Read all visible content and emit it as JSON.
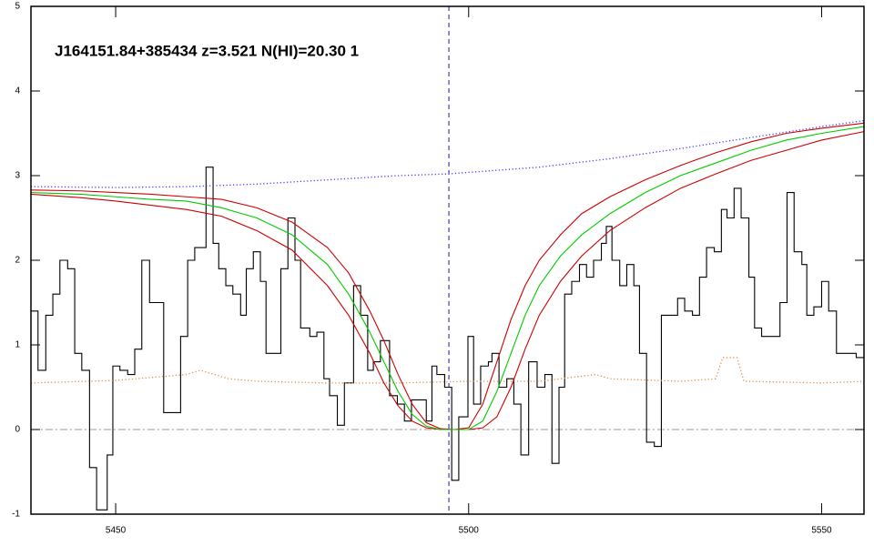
{
  "chart_data": {
    "type": "line",
    "title": "J164151.84+385434 z=3.521 N(HI)=20.30 1",
    "xlim": [
      5438,
      5556
    ],
    "ylim": [
      -1,
      5
    ],
    "xticks": [
      5450,
      5500,
      5550
    ],
    "yticks": [
      -1,
      0,
      1,
      2,
      3,
      4,
      5
    ],
    "vlines": [
      {
        "value": 5497.2,
        "color": "#1a1a9a",
        "dash": "dashed"
      }
    ],
    "hlines": [
      {
        "value": 0,
        "color": "#999999",
        "dash": "dashdot"
      }
    ],
    "series": [
      {
        "kind": "step",
        "color": "#000000",
        "dash": "solid",
        "x": [
          5438.0,
          5439.0,
          5440.1,
          5441.1,
          5442.1,
          5443.2,
          5444.2,
          5445.2,
          5446.3,
          5447.3,
          5448.3,
          5448.8,
          5449.6,
          5450.6,
          5451.7,
          5452.7,
          5453.7,
          5454.8,
          5455.8,
          5456.8,
          5458.1,
          5459.2,
          5460.2,
          5461.2,
          5462.8,
          5463.8,
          5464.6,
          5465.6,
          5466.6,
          5467.7,
          5468.5,
          5469.5,
          5470.5,
          5471.3,
          5472.3,
          5473.4,
          5474.4,
          5475.4,
          5476.2,
          5477.5,
          5478.5,
          5479.5,
          5480.3,
          5481.4,
          5482.4,
          5483.7,
          5484.7,
          5485.7,
          5486.5,
          5487.5,
          5488.8,
          5489.9,
          5490.9,
          5491.9,
          5493.0,
          5494.0,
          5494.8,
          5495.5,
          5496.6,
          5497.6,
          5498.6,
          5499.9,
          5500.7,
          5501.7,
          5502.8,
          5503.3,
          5504.3,
          5505.4,
          5506.4,
          5507.4,
          5508.5,
          5509.7,
          5510.8,
          5511.8,
          5512.8,
          5513.6,
          5514.6,
          5515.7,
          5516.7,
          5517.7,
          5518.8,
          5519.5,
          5520.3,
          5521.4,
          5522.4,
          5523.4,
          5524.2,
          5525.2,
          5526.3,
          5527.3,
          5528.3,
          5529.6,
          5530.6,
          5531.7,
          5532.7,
          5533.7,
          5534.8,
          5535.8,
          5536.6,
          5537.6,
          5538.6,
          5539.7,
          5540.5,
          5541.5,
          5542.8,
          5544.1,
          5545.1,
          5546.1,
          5547.2,
          5547.9,
          5548.9,
          5550.0,
          5551.0,
          5552.1,
          5553.6,
          5554.9
        ],
        "values": [
          1.4,
          0.7,
          1.35,
          1.6,
          2.0,
          1.9,
          0.9,
          0.7,
          -0.45,
          -0.95,
          -0.95,
          -0.3,
          0.75,
          0.7,
          0.65,
          0.95,
          2.0,
          1.5,
          1.5,
          0.2,
          0.2,
          1.1,
          2.0,
          2.15,
          3.1,
          2.2,
          1.9,
          1.7,
          1.6,
          1.35,
          1.9,
          2.1,
          1.75,
          0.9,
          0.9,
          1.9,
          2.5,
          2.0,
          1.2,
          1.1,
          1.15,
          0.6,
          0.4,
          0.05,
          0.55,
          1.7,
          1.35,
          0.7,
          0.8,
          1.05,
          0.4,
          0.3,
          0.1,
          0.35,
          0.35,
          0.1,
          0.75,
          0.65,
          0.5,
          -0.6,
          0.15,
          1.1,
          0.3,
          0.75,
          0.8,
          0.9,
          0.5,
          0.6,
          0.3,
          -0.3,
          0.8,
          0.5,
          0.65,
          -0.4,
          0.5,
          1.6,
          1.75,
          1.95,
          1.8,
          2.0,
          2.2,
          2.4,
          2.0,
          1.7,
          1.95,
          1.7,
          0.9,
          -0.15,
          -0.2,
          1.35,
          1.35,
          1.55,
          1.4,
          1.35,
          1.8,
          2.15,
          2.1,
          2.6,
          2.5,
          2.85,
          2.5,
          1.8,
          1.2,
          1.1,
          1.1,
          1.5,
          2.8,
          2.1,
          1.95,
          1.35,
          1.45,
          1.75,
          1.4,
          0.9,
          0.9,
          0.85
        ]
      },
      {
        "kind": "line",
        "color": "#e08a40",
        "dash": "dotted",
        "x": [
          5438,
          5450,
          5460,
          5462,
          5466,
          5470,
          5480,
          5490,
          5500,
          5510,
          5518,
          5520,
          5530,
          5535,
          5536,
          5538,
          5539,
          5550,
          5556
        ],
        "values": [
          0.55,
          0.58,
          0.65,
          0.7,
          0.6,
          0.57,
          0.55,
          0.55,
          0.57,
          0.57,
          0.65,
          0.6,
          0.57,
          0.6,
          0.85,
          0.85,
          0.57,
          0.55,
          0.57
        ]
      },
      {
        "kind": "line",
        "color": "#3a3aff",
        "dash": "dotted",
        "x": [
          5438,
          5450,
          5460,
          5470,
          5480,
          5490,
          5497,
          5510,
          5520,
          5530,
          5540,
          5550,
          5556
        ],
        "values": [
          2.87,
          2.86,
          2.87,
          2.9,
          2.95,
          3.0,
          3.02,
          3.1,
          3.2,
          3.32,
          3.45,
          3.58,
          3.65
        ]
      },
      {
        "kind": "line",
        "color": "#cc0000",
        "dash": "solid",
        "x": [
          5438,
          5445,
          5450,
          5455,
          5460,
          5465,
          5470,
          5475,
          5480,
          5483,
          5486,
          5488,
          5490,
          5492,
          5494,
          5496,
          5498,
          5500,
          5502,
          5504,
          5506,
          5508,
          5510,
          5513,
          5516,
          5520,
          5525,
          5530,
          5535,
          5540,
          5545,
          5550,
          5556
        ],
        "values": [
          2.83,
          2.82,
          2.8,
          2.78,
          2.75,
          2.72,
          2.62,
          2.45,
          2.15,
          1.85,
          1.4,
          1.05,
          0.65,
          0.3,
          0.08,
          0.01,
          0,
          0.02,
          0.3,
          0.8,
          1.3,
          1.7,
          2.0,
          2.3,
          2.55,
          2.75,
          2.95,
          3.12,
          3.27,
          3.4,
          3.5,
          3.56,
          3.62
        ]
      },
      {
        "kind": "line",
        "color": "#cc0000",
        "dash": "solid",
        "x": [
          5438,
          5445,
          5450,
          5455,
          5460,
          5465,
          5470,
          5475,
          5480,
          5483,
          5486,
          5488,
          5490,
          5492,
          5494,
          5496,
          5498,
          5500,
          5502,
          5504,
          5506,
          5508,
          5510,
          5513,
          5516,
          5520,
          5525,
          5530,
          5535,
          5540,
          5545,
          5550,
          5556
        ],
        "values": [
          2.78,
          2.74,
          2.7,
          2.65,
          2.6,
          2.52,
          2.35,
          2.12,
          1.7,
          1.35,
          0.9,
          0.55,
          0.28,
          0.1,
          0.02,
          0,
          0,
          0,
          0.02,
          0.15,
          0.5,
          0.95,
          1.35,
          1.75,
          2.05,
          2.35,
          2.62,
          2.85,
          3.02,
          3.18,
          3.3,
          3.42,
          3.52
        ]
      },
      {
        "kind": "line",
        "color": "#00cc00",
        "dash": "solid",
        "x": [
          5438,
          5445,
          5450,
          5455,
          5460,
          5465,
          5470,
          5475,
          5480,
          5483,
          5486,
          5488,
          5490,
          5492,
          5494,
          5496,
          5498,
          5500,
          5502,
          5504,
          5506,
          5508,
          5510,
          5513,
          5516,
          5520,
          5525,
          5530,
          5535,
          5540,
          5545,
          5550,
          5556
        ],
        "values": [
          2.8,
          2.78,
          2.75,
          2.72,
          2.7,
          2.62,
          2.5,
          2.3,
          1.95,
          1.6,
          1.15,
          0.8,
          0.45,
          0.18,
          0.04,
          0,
          0,
          0,
          0.1,
          0.45,
          0.9,
          1.35,
          1.7,
          2.05,
          2.3,
          2.55,
          2.8,
          3.0,
          3.15,
          3.3,
          3.42,
          3.5,
          3.58
        ]
      }
    ]
  }
}
